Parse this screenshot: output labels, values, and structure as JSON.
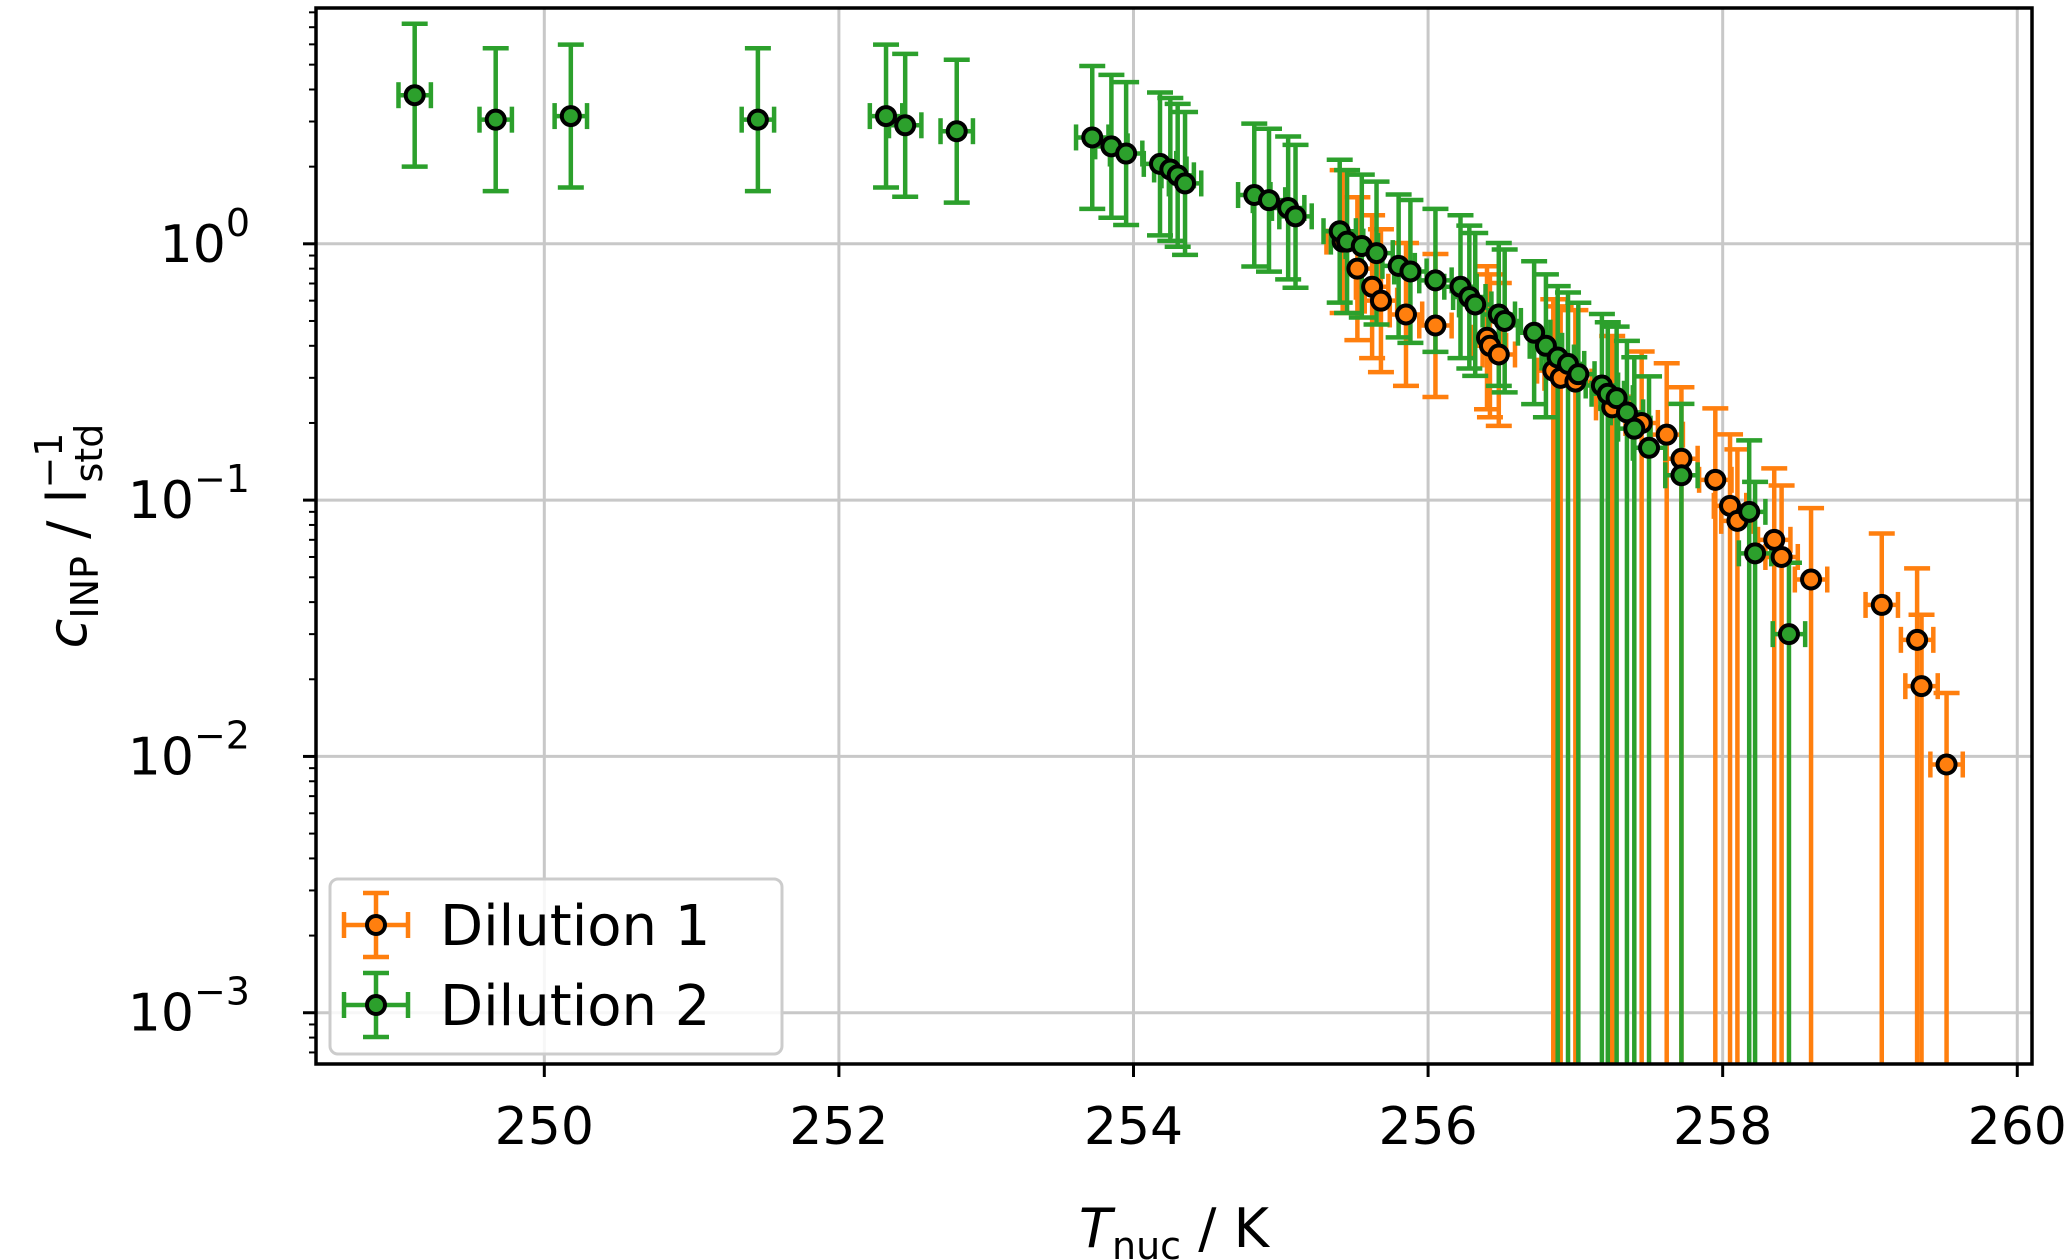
{
  "chart_data": {
    "type": "scatter",
    "title": "",
    "xlabel": {
      "main": "T",
      "sub": "nuc",
      "unit": " / K"
    },
    "ylabel": {
      "main": "c",
      "sub": "INP",
      "sep": " / l",
      "sup": "−1",
      "sub2": "std"
    },
    "xlim": [
      248.45,
      260.1
    ],
    "ylim_log10": [
      -3.2,
      0.92
    ],
    "yscale": "log",
    "grid": true,
    "legend_position": "lower-left",
    "xticks": [
      250,
      252,
      254,
      256,
      258,
      260
    ],
    "yticks": [
      {
        "value": 1,
        "base": "10",
        "exp": "0"
      },
      {
        "value": 0.1,
        "base": "10",
        "exp": "−1"
      },
      {
        "value": 0.01,
        "base": "10",
        "exp": "−2"
      },
      {
        "value": 0.001,
        "base": "10",
        "exp": "−3"
      }
    ],
    "series": [
      {
        "name": "Dilution 1",
        "color": "#ff7f0e",
        "points": [
          [
            255.42,
            1.02
          ],
          [
            255.52,
            0.8
          ],
          [
            255.62,
            0.68
          ],
          [
            255.68,
            0.6
          ],
          [
            255.85,
            0.53
          ],
          [
            256.05,
            0.48
          ],
          [
            256.4,
            0.43
          ],
          [
            256.42,
            0.4
          ],
          [
            256.48,
            0.37
          ],
          [
            256.85,
            0.32
          ],
          [
            256.9,
            0.3
          ],
          [
            257.0,
            0.29
          ],
          [
            257.25,
            0.23
          ],
          [
            257.45,
            0.2
          ],
          [
            257.62,
            0.18
          ],
          [
            257.72,
            0.145
          ],
          [
            257.95,
            0.12
          ],
          [
            258.05,
            0.095
          ],
          [
            258.1,
            0.083
          ],
          [
            258.35,
            0.07
          ],
          [
            258.4,
            0.06
          ],
          [
            258.6,
            0.049
          ],
          [
            259.08,
            0.039
          ],
          [
            259.32,
            0.0285
          ],
          [
            259.35,
            0.0188
          ],
          [
            259.52,
            0.0093
          ]
        ]
      },
      {
        "name": "Dilution 2",
        "color": "#2ca02c",
        "points": [
          [
            249.12,
            3.8
          ],
          [
            249.67,
            3.05
          ],
          [
            250.18,
            3.15
          ],
          [
            251.45,
            3.05
          ],
          [
            252.32,
            3.15
          ],
          [
            252.45,
            2.9
          ],
          [
            252.8,
            2.75
          ],
          [
            253.72,
            2.6
          ],
          [
            253.85,
            2.4
          ],
          [
            253.95,
            2.25
          ],
          [
            254.18,
            2.05
          ],
          [
            254.25,
            1.95
          ],
          [
            254.3,
            1.85
          ],
          [
            254.35,
            1.72
          ],
          [
            254.82,
            1.55
          ],
          [
            254.92,
            1.48
          ],
          [
            255.05,
            1.38
          ],
          [
            255.1,
            1.28
          ],
          [
            255.4,
            1.12
          ],
          [
            255.45,
            1.02
          ],
          [
            255.55,
            0.98
          ],
          [
            255.65,
            0.92
          ],
          [
            255.8,
            0.82
          ],
          [
            255.88,
            0.78
          ],
          [
            256.05,
            0.72
          ],
          [
            256.22,
            0.68
          ],
          [
            256.28,
            0.62
          ],
          [
            256.32,
            0.58
          ],
          [
            256.48,
            0.53
          ],
          [
            256.52,
            0.5
          ],
          [
            256.72,
            0.45
          ],
          [
            256.8,
            0.4
          ],
          [
            256.88,
            0.36
          ],
          [
            256.95,
            0.34
          ],
          [
            257.02,
            0.31
          ],
          [
            257.18,
            0.28
          ],
          [
            257.22,
            0.26
          ],
          [
            257.28,
            0.25
          ],
          [
            257.35,
            0.22
          ],
          [
            257.4,
            0.19
          ],
          [
            257.5,
            0.16
          ],
          [
            257.72,
            0.125
          ],
          [
            258.18,
            0.09
          ],
          [
            258.22,
            0.062
          ],
          [
            258.45,
            0.03
          ]
        ]
      }
    ]
  }
}
